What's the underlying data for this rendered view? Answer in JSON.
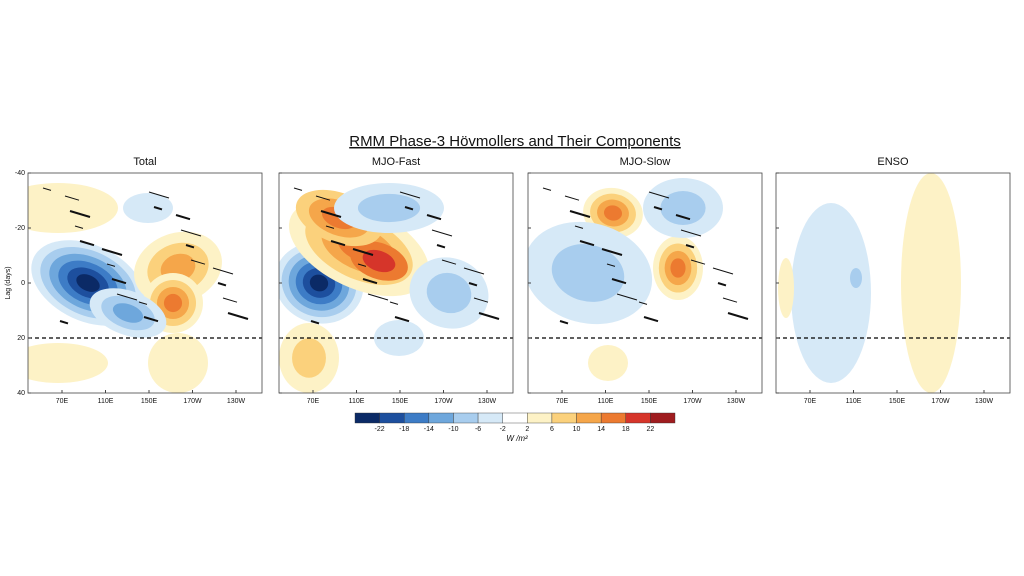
{
  "title": "RMM Phase-3 Hövmollers and Their Components",
  "panels": [
    {
      "title": "Total"
    },
    {
      "title": "MJO-Fast"
    },
    {
      "title": "MJO-Slow"
    },
    {
      "title": "ENSO"
    }
  ],
  "y_axis": {
    "label": "Lag (days)",
    "ticks": [
      -40,
      -20,
      0,
      20,
      40
    ]
  },
  "x_ticks": [
    "70E",
    "110E",
    "150E",
    "170W",
    "130W"
  ],
  "colorbar": {
    "levels": [
      -22,
      -18,
      -14,
      -10,
      -6,
      -2,
      2,
      6,
      10,
      14,
      18,
      22
    ],
    "colors": [
      "#0b2a66",
      "#1d4f9e",
      "#3d7cc6",
      "#6ea7dc",
      "#a8cdee",
      "#d6e9f7",
      "#ffffff",
      "#fdf2c6",
      "#fbd17c",
      "#f5a64a",
      "#ec7a30",
      "#d6352a",
      "#9f1c1f"
    ],
    "label": "W /m²"
  }
}
